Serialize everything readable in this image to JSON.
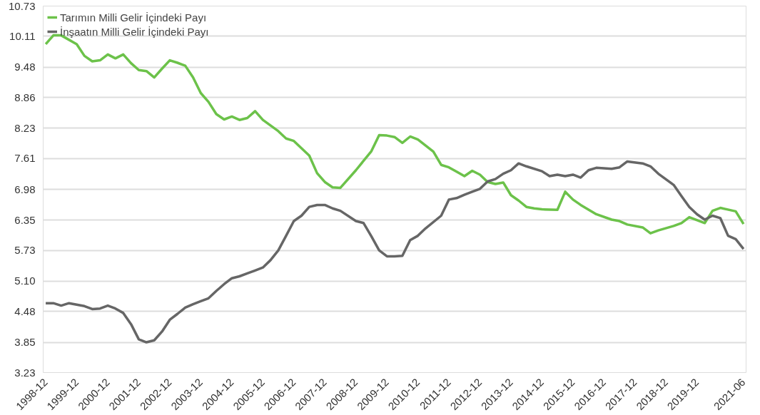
{
  "chart_data": {
    "type": "line",
    "x": [
      "1998-12",
      "1999-03",
      "1999-06",
      "1999-09",
      "1999-12",
      "2000-03",
      "2000-06",
      "2000-09",
      "2000-12",
      "2001-03",
      "2001-06",
      "2001-09",
      "2001-12",
      "2002-03",
      "2002-06",
      "2002-09",
      "2002-12",
      "2003-03",
      "2003-06",
      "2003-09",
      "2003-12",
      "2004-03",
      "2004-06",
      "2004-09",
      "2004-12",
      "2005-03",
      "2005-06",
      "2005-09",
      "2005-12",
      "2006-03",
      "2006-06",
      "2006-09",
      "2006-12",
      "2007-03",
      "2007-06",
      "2007-09",
      "2007-12",
      "2008-03",
      "2008-06",
      "2008-12",
      "2009-03",
      "2009-06",
      "2009-09",
      "2009-12",
      "2010-03",
      "2010-06",
      "2010-09",
      "2010-12",
      "2011-03",
      "2011-09",
      "2011-12",
      "2012-03",
      "2012-06",
      "2012-09",
      "2012-12",
      "2013-03",
      "2013-06",
      "2013-09",
      "2013-12",
      "2014-03",
      "2014-06",
      "2014-12",
      "2015-03",
      "2015-06",
      "2015-09",
      "2015-12",
      "2016-03",
      "2016-06",
      "2016-09",
      "2017-03",
      "2017-06",
      "2017-09",
      "2018-03",
      "2018-06",
      "2018-09",
      "2019-03",
      "2019-06",
      "2019-09",
      "2019-12",
      "2020-03",
      "2020-06",
      "2020-09",
      "2020-12",
      "2021-03",
      "2021-06"
    ],
    "series": [
      {
        "name": "Tarımın Milli Gelir İçindeki Payı",
        "color": "#6cc24a",
        "x": [
          "1998-12",
          "1999-03",
          "1999-06",
          "1999-12",
          "2000-03",
          "2000-06",
          "2000-09",
          "2000-12",
          "2001-03",
          "2001-06",
          "2001-09",
          "2001-12",
          "2002-03",
          "2002-06",
          "2002-09",
          "2002-12",
          "2003-03",
          "2003-06",
          "2003-09",
          "2003-12",
          "2004-03",
          "2004-06",
          "2004-09",
          "2004-12",
          "2005-03",
          "2005-06",
          "2005-09",
          "2005-12",
          "2006-06",
          "2006-09",
          "2006-12",
          "2007-06",
          "2007-09",
          "2007-12",
          "2008-03",
          "2008-06",
          "2008-12",
          "2009-06",
          "2009-09",
          "2009-12",
          "2010-03",
          "2010-06",
          "2010-09",
          "2010-12",
          "2011-06",
          "2011-09",
          "2011-12",
          "2012-03",
          "2012-06",
          "2012-09",
          "2012-12",
          "2013-03",
          "2013-06",
          "2013-09",
          "2013-12",
          "2014-03",
          "2014-06",
          "2014-09",
          "2014-12",
          "2015-06",
          "2015-09",
          "2015-12",
          "2016-03",
          "2016-09",
          "2017-03",
          "2017-06",
          "2017-09",
          "2018-03",
          "2018-06",
          "2018-09",
          "2019-03",
          "2019-06",
          "2019-09",
          "2020-03",
          "2020-06",
          "2020-09",
          "2021-03",
          "2021-06"
        ],
        "values": [
          9.95,
          10.13,
          10.13,
          9.95,
          9.71,
          9.6,
          9.62,
          9.74,
          9.66,
          9.74,
          9.56,
          9.42,
          9.4,
          9.27,
          9.45,
          9.62,
          9.57,
          9.51,
          9.27,
          8.95,
          8.77,
          8.52,
          8.41,
          8.47,
          8.4,
          8.44,
          8.58,
          8.4,
          8.17,
          8.02,
          7.97,
          7.67,
          7.31,
          7.13,
          7.02,
          7.01,
          7.37,
          7.76,
          8.09,
          8.08,
          8.05,
          7.93,
          8.06,
          8.0,
          7.75,
          7.48,
          7.43,
          7.34,
          7.25,
          7.36,
          7.28,
          7.13,
          7.09,
          7.12,
          6.86,
          6.75,
          6.62,
          6.59,
          6.57,
          6.56,
          6.93,
          6.77,
          6.66,
          6.47,
          6.36,
          6.33,
          6.26,
          6.2,
          6.08,
          6.14,
          6.23,
          6.29,
          6.41,
          6.29,
          6.54,
          6.6,
          6.53,
          6.27
        ]
      },
      {
        "name": "İnşaatın Milli Gelir İçindeki Payı",
        "color": "#666666",
        "values": [
          4.65,
          4.65,
          4.6,
          4.65,
          4.62,
          4.59,
          4.53,
          4.54,
          4.6,
          4.54,
          4.45,
          4.22,
          3.91,
          3.85,
          3.89,
          4.07,
          4.31,
          4.43,
          4.56,
          4.63,
          4.69,
          4.75,
          4.9,
          5.04,
          5.16,
          5.2,
          5.26,
          5.32,
          5.38,
          5.53,
          5.73,
          6.03,
          6.33,
          6.44,
          6.62,
          6.66,
          6.66,
          6.59,
          6.54,
          6.33,
          6.29,
          6.02,
          5.73,
          5.61,
          5.61,
          5.62,
          5.94,
          6.03,
          6.18,
          6.44,
          6.77,
          6.8,
          6.87,
          6.93,
          6.99,
          7.14,
          7.19,
          7.3,
          7.37,
          7.51,
          7.45,
          7.35,
          7.25,
          7.28,
          7.25,
          7.28,
          7.22,
          7.37,
          7.42,
          7.4,
          7.43,
          7.55,
          7.51,
          7.45,
          7.3,
          7.07,
          6.84,
          6.62,
          6.47,
          6.36,
          6.44,
          6.39,
          6.03,
          5.96,
          5.76
        ]
      }
    ],
    "xlim": [
      "1998-11",
      "2021-07"
    ],
    "xticks": [
      {
        "value": "1998-12",
        "label": "1998-12"
      },
      {
        "value": "1999-12",
        "label": "1999-12"
      },
      {
        "value": "2000-12",
        "label": "2000-12"
      },
      {
        "value": "2001-12",
        "label": "2001-12"
      },
      {
        "value": "2002-12",
        "label": "2002-12"
      },
      {
        "value": "2003-12",
        "label": "2003-12"
      },
      {
        "value": "2004-12",
        "label": "2004-12"
      },
      {
        "value": "2005-12",
        "label": "2005-12"
      },
      {
        "value": "2006-12",
        "label": "2006-12"
      },
      {
        "value": "2007-12",
        "label": "2007-12"
      },
      {
        "value": "2008-12",
        "label": "2008-12"
      },
      {
        "value": "2009-12",
        "label": "2009-12"
      },
      {
        "value": "2010-12",
        "label": "2010-12"
      },
      {
        "value": "2011-12",
        "label": "2011-12"
      },
      {
        "value": "2012-12",
        "label": "2012-12"
      },
      {
        "value": "2013-12",
        "label": "2013-12"
      },
      {
        "value": "2014-12",
        "label": "2014-12"
      },
      {
        "value": "2015-12",
        "label": "2015-12"
      },
      {
        "value": "2016-12",
        "label": "2016-12"
      },
      {
        "value": "2017-12",
        "label": "2017-12"
      },
      {
        "value": "2018-12",
        "label": "2018-12"
      },
      {
        "value": "2019-12",
        "label": "2019-12"
      },
      {
        "value": "2021-06",
        "label": "2021-06"
      }
    ],
    "ylim": [
      3.23,
      10.73
    ],
    "yticks": [
      3.23,
      3.85,
      4.48,
      {
        "value": 5.1,
        "label": "5.10"
      },
      5.73,
      6.35,
      6.98,
      7.61,
      8.23,
      8.86,
      9.48,
      10.11,
      10.73
    ],
    "grid": "y",
    "legend": "top left",
    "marker": "none",
    "line_style": "solid"
  }
}
